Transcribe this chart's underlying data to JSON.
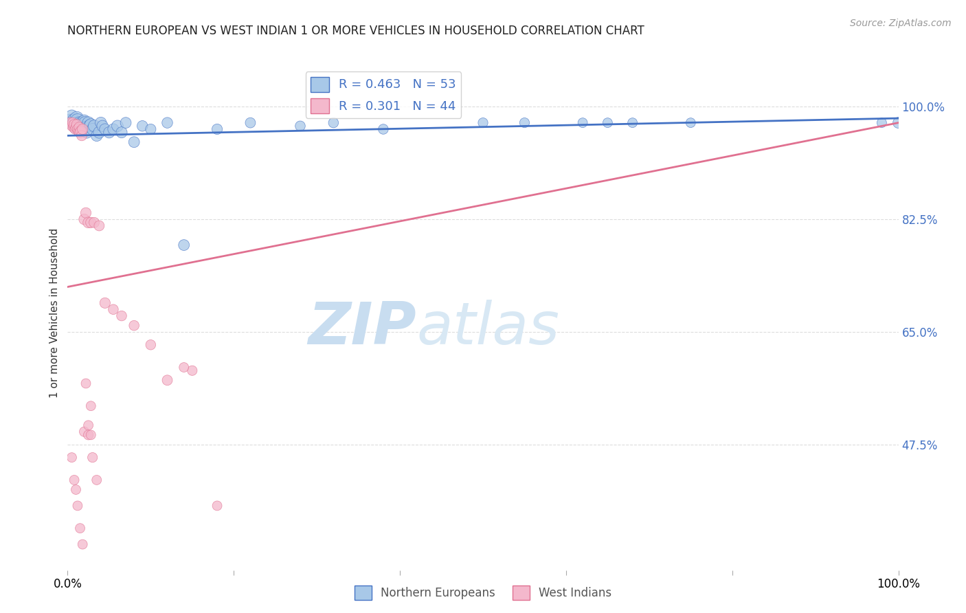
{
  "title": "NORTHERN EUROPEAN VS WEST INDIAN 1 OR MORE VEHICLES IN HOUSEHOLD CORRELATION CHART",
  "source": "Source: ZipAtlas.com",
  "ylabel": "1 or more Vehicles in Household",
  "ytick_labels": [
    "100.0%",
    "82.5%",
    "65.0%",
    "47.5%"
  ],
  "ytick_values": [
    1.0,
    0.825,
    0.65,
    0.475
  ],
  "xlim": [
    0.0,
    1.0
  ],
  "ylim": [
    0.28,
    1.08
  ],
  "blue_R": 0.463,
  "blue_N": 53,
  "pink_R": 0.301,
  "pink_N": 44,
  "blue_color": "#a8c8e8",
  "pink_color": "#f4b8cc",
  "blue_line_color": "#4472c4",
  "pink_line_color": "#e07090",
  "legend_color": "#4472c4",
  "watermark_zip_color": "#c8ddf0",
  "watermark_atlas_color": "#d8e8f4",
  "blue_points_x": [
    0.003,
    0.005,
    0.006,
    0.007,
    0.008,
    0.009,
    0.01,
    0.011,
    0.012,
    0.013,
    0.014,
    0.015,
    0.016,
    0.017,
    0.018,
    0.019,
    0.02,
    0.021,
    0.022,
    0.023,
    0.025,
    0.026,
    0.028,
    0.03,
    0.032,
    0.035,
    0.038,
    0.04,
    0.042,
    0.045,
    0.05,
    0.055,
    0.06,
    0.065,
    0.07,
    0.08,
    0.09,
    0.1,
    0.12,
    0.14,
    0.18,
    0.22,
    0.28,
    0.32,
    0.38,
    0.5,
    0.55,
    0.62,
    0.65,
    0.68,
    0.75,
    0.98,
    1.0
  ],
  "blue_points_y": [
    0.978,
    0.985,
    0.975,
    0.98,
    0.972,
    0.968,
    0.975,
    0.982,
    0.978,
    0.97,
    0.975,
    0.972,
    0.968,
    0.975,
    0.965,
    0.97,
    0.978,
    0.975,
    0.968,
    0.96,
    0.975,
    0.97,
    0.972,
    0.965,
    0.97,
    0.955,
    0.96,
    0.975,
    0.97,
    0.965,
    0.96,
    0.965,
    0.97,
    0.96,
    0.975,
    0.945,
    0.97,
    0.965,
    0.975,
    0.785,
    0.965,
    0.975,
    0.97,
    0.975,
    0.965,
    0.975,
    0.975,
    0.975,
    0.975,
    0.975,
    0.975,
    0.975,
    0.975
  ],
  "blue_sizes": [
    200,
    180,
    160,
    140,
    180,
    160,
    160,
    200,
    220,
    190,
    160,
    180,
    150,
    160,
    170,
    150,
    160,
    170,
    160,
    150,
    160,
    155,
    160,
    150,
    155,
    140,
    150,
    140,
    140,
    135,
    140,
    135,
    145,
    135,
    130,
    130,
    125,
    120,
    125,
    130,
    120,
    115,
    110,
    110,
    110,
    105,
    105,
    100,
    100,
    100,
    100,
    100,
    130
  ],
  "pink_points_x": [
    0.003,
    0.005,
    0.006,
    0.007,
    0.008,
    0.009,
    0.01,
    0.011,
    0.012,
    0.013,
    0.014,
    0.015,
    0.016,
    0.017,
    0.018,
    0.02,
    0.022,
    0.025,
    0.028,
    0.032,
    0.038,
    0.045,
    0.055,
    0.065,
    0.08,
    0.1,
    0.12,
    0.15,
    0.02,
    0.025,
    0.03,
    0.035,
    0.025,
    0.028,
    0.005,
    0.008,
    0.01,
    0.012,
    0.015,
    0.018,
    0.022,
    0.028,
    0.14,
    0.18
  ],
  "pink_points_y": [
    0.975,
    0.97,
    0.975,
    0.968,
    0.972,
    0.965,
    0.968,
    0.972,
    0.965,
    0.962,
    0.968,
    0.96,
    0.962,
    0.955,
    0.965,
    0.825,
    0.835,
    0.82,
    0.82,
    0.82,
    0.815,
    0.695,
    0.685,
    0.675,
    0.66,
    0.63,
    0.575,
    0.59,
    0.495,
    0.49,
    0.455,
    0.42,
    0.505,
    0.49,
    0.455,
    0.42,
    0.405,
    0.38,
    0.345,
    0.32,
    0.57,
    0.535,
    0.595,
    0.38
  ],
  "pink_sizes": [
    120,
    110,
    115,
    110,
    125,
    110,
    115,
    120,
    115,
    110,
    115,
    130,
    125,
    115,
    120,
    125,
    120,
    130,
    120,
    115,
    115,
    120,
    110,
    110,
    110,
    110,
    115,
    105,
    105,
    105,
    105,
    100,
    100,
    100,
    100,
    100,
    100,
    100,
    100,
    100,
    100,
    100,
    100,
    100
  ],
  "blue_trend_y_start": 0.955,
  "blue_trend_y_end": 0.982,
  "pink_trend_y_start": 0.72,
  "pink_trend_y_end": 0.975,
  "grid_color": "#dddddd",
  "legend_label_blue": "Northern Europeans",
  "legend_label_pink": "West Indians",
  "background_color": "#ffffff"
}
